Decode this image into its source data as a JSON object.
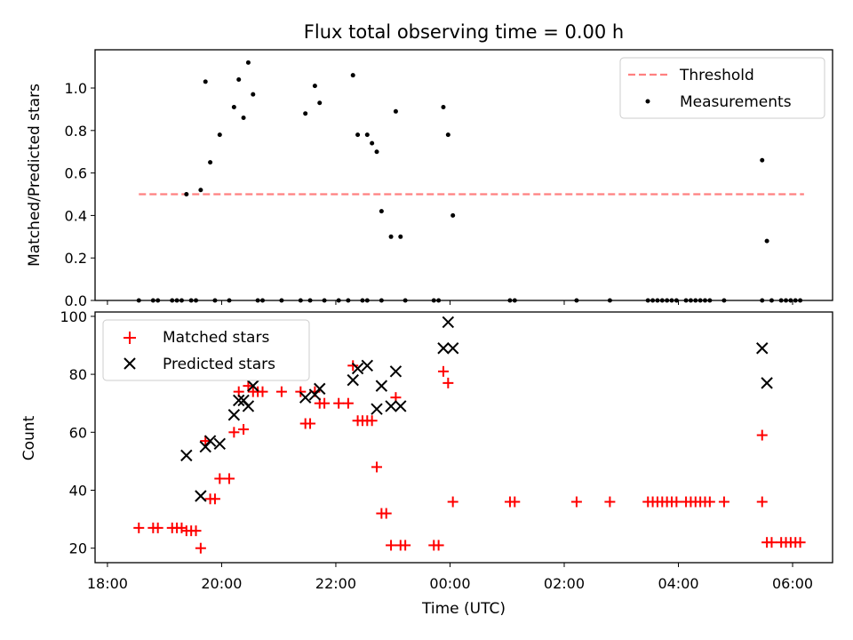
{
  "chart_data": [
    {
      "type": "scatter",
      "title": "Flux total observing time = 0.00 h",
      "ylabel": "Matched/Predicted stars",
      "xlim": [
        "17:47",
        "06:42"
      ],
      "ylim": [
        0,
        1.18
      ],
      "yticks": [
        "0.0",
        "0.2",
        "0.4",
        "0.6",
        "0.8",
        "1.0"
      ],
      "grid": false,
      "legend": {
        "placement": "top-right",
        "entries": [
          "Threshold",
          "Measurements"
        ]
      },
      "threshold": {
        "name": "Threshold",
        "value": 0.5,
        "x_range": [
          "18:33",
          "06:12"
        ],
        "color": "#ff8080"
      },
      "series": [
        {
          "name": "Measurements",
          "color": "#000000",
          "points": [
            [
              "19:23",
              0.5
            ],
            [
              "19:38",
              0.52
            ],
            [
              "19:43",
              1.03
            ],
            [
              "19:48",
              0.65
            ],
            [
              "19:58",
              0.78
            ],
            [
              "20:13",
              0.91
            ],
            [
              "20:18",
              1.04
            ],
            [
              "20:23",
              0.86
            ],
            [
              "20:28",
              1.12
            ],
            [
              "20:33",
              0.97
            ],
            [
              "21:28",
              0.88
            ],
            [
              "21:38",
              1.01
            ],
            [
              "21:43",
              0.93
            ],
            [
              "22:18",
              1.06
            ],
            [
              "22:23",
              0.78
            ],
            [
              "22:33",
              0.78
            ],
            [
              "22:38",
              0.74
            ],
            [
              "22:43",
              0.7
            ],
            [
              "22:48",
              0.42
            ],
            [
              "22:58",
              0.3
            ],
            [
              "23:03",
              0.89
            ],
            [
              "23:08",
              0.3
            ],
            [
              "23:53",
              0.91
            ],
            [
              "23:58",
              0.78
            ],
            [
              "00:03",
              0.4
            ],
            [
              "05:28",
              0.66
            ],
            [
              "05:33",
              0.28
            ],
            [
              "18:33",
              0
            ],
            [
              "18:48",
              0
            ],
            [
              "18:53",
              0
            ],
            [
              "19:08",
              0
            ],
            [
              "19:13",
              0
            ],
            [
              "19:18",
              0
            ],
            [
              "19:28",
              0
            ],
            [
              "19:33",
              0
            ],
            [
              "19:53",
              0
            ],
            [
              "20:08",
              0
            ],
            [
              "20:38",
              0
            ],
            [
              "20:43",
              0
            ],
            [
              "21:03",
              0
            ],
            [
              "21:23",
              0
            ],
            [
              "21:33",
              0
            ],
            [
              "21:48",
              0
            ],
            [
              "22:03",
              0
            ],
            [
              "22:13",
              0
            ],
            [
              "22:28",
              0
            ],
            [
              "22:33",
              0
            ],
            [
              "22:48",
              0
            ],
            [
              "23:13",
              0
            ],
            [
              "23:43",
              0
            ],
            [
              "23:48",
              0
            ],
            [
              "01:03",
              0
            ],
            [
              "01:08",
              0
            ],
            [
              "02:13",
              0
            ],
            [
              "02:48",
              0
            ],
            [
              "03:28",
              0
            ],
            [
              "03:33",
              0
            ],
            [
              "03:38",
              0
            ],
            [
              "03:43",
              0
            ],
            [
              "03:48",
              0
            ],
            [
              "03:53",
              0
            ],
            [
              "03:58",
              0
            ],
            [
              "04:08",
              0
            ],
            [
              "04:13",
              0
            ],
            [
              "04:18",
              0
            ],
            [
              "04:23",
              0
            ],
            [
              "04:28",
              0
            ],
            [
              "04:33",
              0
            ],
            [
              "04:48",
              0
            ],
            [
              "05:28",
              0
            ],
            [
              "05:38",
              0
            ],
            [
              "05:48",
              0
            ],
            [
              "05:53",
              0
            ],
            [
              "05:58",
              0
            ],
            [
              "06:03",
              0
            ],
            [
              "06:08",
              0
            ]
          ]
        }
      ]
    },
    {
      "type": "scatter",
      "xlabel": "Time (UTC)",
      "ylabel": "Count",
      "xlim": [
        "17:47",
        "06:42"
      ],
      "ylim": [
        15,
        101.5
      ],
      "yticks": [
        "20",
        "40",
        "60",
        "80",
        "100"
      ],
      "xticks": [
        "18:00",
        "20:00",
        "22:00",
        "00:00",
        "02:00",
        "04:00",
        "06:00"
      ],
      "grid": false,
      "legend": {
        "placement": "top-left",
        "entries": [
          "Matched stars",
          "Predicted stars"
        ]
      },
      "series": [
        {
          "name": "Matched stars",
          "marker": "plus",
          "color": "#ff0000",
          "points": [
            [
              "18:33",
              27
            ],
            [
              "18:48",
              27
            ],
            [
              "18:53",
              27
            ],
            [
              "19:08",
              27
            ],
            [
              "19:13",
              27
            ],
            [
              "19:18",
              27
            ],
            [
              "19:23",
              26
            ],
            [
              "19:28",
              26
            ],
            [
              "19:33",
              26
            ],
            [
              "19:38",
              20
            ],
            [
              "19:43",
              57
            ],
            [
              "19:48",
              37
            ],
            [
              "19:53",
              37
            ],
            [
              "19:58",
              44
            ],
            [
              "20:08",
              44
            ],
            [
              "20:13",
              60
            ],
            [
              "20:18",
              74
            ],
            [
              "20:23",
              61
            ],
            [
              "20:28",
              76
            ],
            [
              "20:33",
              74
            ],
            [
              "20:38",
              74
            ],
            [
              "20:43",
              74
            ],
            [
              "21:03",
              74
            ],
            [
              "21:23",
              74
            ],
            [
              "21:28",
              63
            ],
            [
              "21:33",
              63
            ],
            [
              "21:38",
              74
            ],
            [
              "21:43",
              70
            ],
            [
              "21:48",
              70
            ],
            [
              "22:03",
              70
            ],
            [
              "22:13",
              70
            ],
            [
              "22:18",
              83
            ],
            [
              "22:23",
              64
            ],
            [
              "22:28",
              64
            ],
            [
              "22:33",
              64
            ],
            [
              "22:38",
              64
            ],
            [
              "22:43",
              48
            ],
            [
              "22:48",
              32
            ],
            [
              "22:53",
              32
            ],
            [
              "22:58",
              21
            ],
            [
              "23:03",
              72
            ],
            [
              "23:08",
              21
            ],
            [
              "23:13",
              21
            ],
            [
              "23:43",
              21
            ],
            [
              "23:48",
              21
            ],
            [
              "23:53",
              81
            ],
            [
              "23:58",
              77
            ],
            [
              "00:03",
              36
            ],
            [
              "01:03",
              36
            ],
            [
              "01:08",
              36
            ],
            [
              "02:13",
              36
            ],
            [
              "02:48",
              36
            ],
            [
              "03:28",
              36
            ],
            [
              "03:33",
              36
            ],
            [
              "03:38",
              36
            ],
            [
              "03:43",
              36
            ],
            [
              "03:48",
              36
            ],
            [
              "03:53",
              36
            ],
            [
              "03:58",
              36
            ],
            [
              "04:08",
              36
            ],
            [
              "04:13",
              36
            ],
            [
              "04:18",
              36
            ],
            [
              "04:23",
              36
            ],
            [
              "04:28",
              36
            ],
            [
              "04:33",
              36
            ],
            [
              "04:48",
              36
            ],
            [
              "05:28",
              36
            ],
            [
              "05:28",
              59
            ],
            [
              "05:33",
              22
            ],
            [
              "05:38",
              22
            ],
            [
              "05:48",
              22
            ],
            [
              "05:53",
              22
            ],
            [
              "05:58",
              22
            ],
            [
              "06:03",
              22
            ],
            [
              "06:08",
              22
            ]
          ]
        },
        {
          "name": "Predicted stars",
          "marker": "x",
          "color": "#000000",
          "points": [
            [
              "19:23",
              52
            ],
            [
              "19:38",
              38
            ],
            [
              "19:43",
              55
            ],
            [
              "19:48",
              57
            ],
            [
              "19:58",
              56
            ],
            [
              "20:13",
              66
            ],
            [
              "20:18",
              71
            ],
            [
              "20:23",
              71
            ],
            [
              "20:28",
              69
            ],
            [
              "20:33",
              76
            ],
            [
              "21:28",
              72
            ],
            [
              "21:38",
              73
            ],
            [
              "21:43",
              75
            ],
            [
              "22:18",
              78
            ],
            [
              "22:23",
              82
            ],
            [
              "22:33",
              83
            ],
            [
              "22:43",
              68
            ],
            [
              "22:48",
              76
            ],
            [
              "22:58",
              69
            ],
            [
              "23:03",
              81
            ],
            [
              "23:08",
              69
            ],
            [
              "23:53",
              89
            ],
            [
              "23:58",
              98
            ],
            [
              "00:03",
              89
            ],
            [
              "05:28",
              89
            ],
            [
              "05:33",
              77
            ]
          ]
        }
      ]
    }
  ]
}
